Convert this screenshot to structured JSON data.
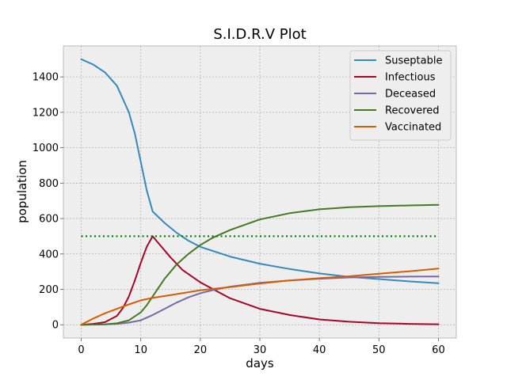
{
  "chart_data": {
    "type": "line",
    "title": "S.I.D.R.V Plot",
    "xlabel": "days",
    "ylabel": "population",
    "xlim": [
      -3,
      63
    ],
    "ylim": [
      -75,
      1575
    ],
    "xticks": [
      0,
      10,
      20,
      30,
      40,
      50,
      60
    ],
    "yticks": [
      0,
      200,
      400,
      600,
      800,
      1000,
      1200,
      1400
    ],
    "grid": true,
    "legend_position": "top-right",
    "background": "#eeeeee",
    "series": [
      {
        "name": "Suseptable",
        "color": "#348abd",
        "x": [
          0,
          2,
          4,
          6,
          8,
          9,
          10,
          11,
          12,
          14,
          16,
          18,
          20,
          25,
          30,
          35,
          40,
          45,
          50,
          55,
          60
        ],
        "y": [
          1500,
          1470,
          1425,
          1350,
          1200,
          1080,
          920,
          760,
          640,
          575,
          520,
          475,
          440,
          385,
          345,
          315,
          290,
          270,
          258,
          245,
          235
        ]
      },
      {
        "name": "Infectious",
        "color": "#a60628",
        "x": [
          0,
          2,
          4,
          6,
          7,
          8,
          9,
          10,
          11,
          12,
          13,
          15,
          17,
          20,
          25,
          30,
          35,
          40,
          45,
          50,
          55,
          60
        ],
        "y": [
          0,
          5,
          15,
          50,
          95,
          160,
          250,
          350,
          440,
          500,
          460,
          380,
          310,
          240,
          150,
          90,
          55,
          30,
          17,
          9,
          5,
          3
        ]
      },
      {
        "name": "Deceased",
        "color": "#7a68a6",
        "x": [
          0,
          4,
          6,
          8,
          10,
          12,
          14,
          16,
          18,
          20,
          22,
          25,
          30,
          35,
          40,
          45,
          50,
          55,
          60
        ],
        "y": [
          0,
          2,
          5,
          12,
          25,
          55,
          90,
          125,
          155,
          178,
          195,
          215,
          237,
          250,
          260,
          267,
          270,
          272,
          273
        ]
      },
      {
        "name": "Recovered",
        "color": "#467821",
        "x": [
          0,
          4,
          6,
          8,
          10,
          11,
          12,
          14,
          16,
          18,
          20,
          22,
          25,
          30,
          35,
          40,
          45,
          50,
          55,
          60
        ],
        "y": [
          0,
          3,
          8,
          25,
          70,
          110,
          160,
          260,
          340,
          400,
          450,
          490,
          535,
          595,
          630,
          652,
          664,
          670,
          674,
          677
        ]
      },
      {
        "name": "Vaccinated",
        "color": "#d55e00",
        "x": [
          0,
          2,
          4,
          6,
          8,
          10,
          12,
          15,
          20,
          25,
          30,
          35,
          40,
          45,
          50,
          55,
          60
        ],
        "y": [
          0,
          35,
          65,
          90,
          115,
          138,
          152,
          168,
          195,
          213,
          233,
          250,
          263,
          274,
          288,
          302,
          317
        ]
      }
    ],
    "reference_line": {
      "y": 500,
      "x_range": [
        0,
        60
      ],
      "color": "#008000",
      "style": "dotted"
    }
  }
}
